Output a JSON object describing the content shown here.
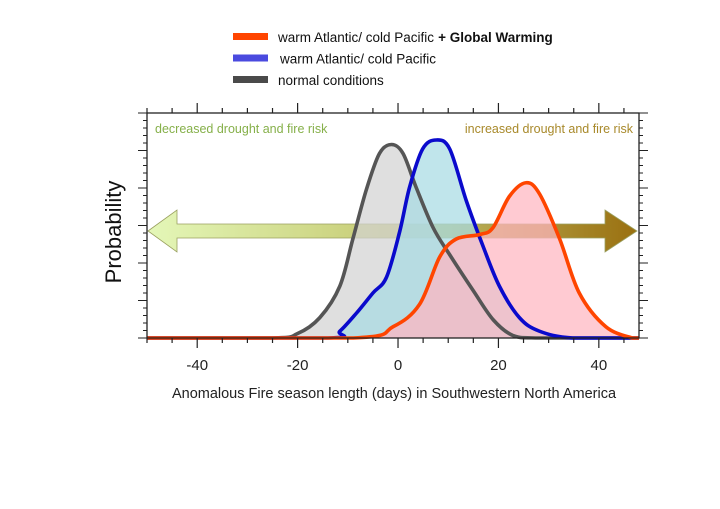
{
  "chart_data": {
    "type": "area",
    "title": "",
    "xlabel": "Anomalous Fire season length (days) in Southwestern North America",
    "ylabel": "Probability",
    "xlim": [
      -50,
      48
    ],
    "ylim": [
      0,
      1
    ],
    "x_ticks": [
      "-40",
      "-20",
      "0",
      "20",
      "40"
    ],
    "x_tick_values": [
      -40,
      -20,
      0,
      20,
      40
    ],
    "y_tick_labels_shown": false,
    "grid": false,
    "legend": {
      "placement": "top",
      "entries": [
        {
          "text": "warm Atlantic/ cold Pacific",
          "bold_suffix": "+ Global Warming",
          "color": "#ff4500"
        },
        {
          "text": "warm Atlantic/ cold Pacific",
          "bold_suffix": "",
          "color": "#4a4adf"
        },
        {
          "text": "normal conditions",
          "bold_suffix": "",
          "color": "#4a4a4a"
        }
      ]
    },
    "annotations": {
      "left": "decreased drought and fire risk",
      "right": "increased drought and fire risk",
      "left_color": "#86b04a",
      "right_color": "#a8892a"
    },
    "series": [
      {
        "key": "normal",
        "line": "#555555",
        "fill": "#d3d3d3",
        "points": [
          [
            -50,
            0
          ],
          [
            -25,
            0
          ],
          [
            -20,
            0.02
          ],
          [
            -15.6,
            0.09
          ],
          [
            -11.6,
            0.23
          ],
          [
            -9,
            0.44
          ],
          [
            -6.3,
            0.66
          ],
          [
            -3.7,
            0.82
          ],
          [
            -1.3,
            0.86
          ],
          [
            1,
            0.82
          ],
          [
            3.6,
            0.67
          ],
          [
            7,
            0.49
          ],
          [
            10.3,
            0.37
          ],
          [
            15,
            0.21
          ],
          [
            19,
            0.08
          ],
          [
            23,
            0.01
          ],
          [
            28,
            0
          ],
          [
            48,
            0
          ]
        ]
      },
      {
        "key": "warm_cold",
        "line": "#0a0acc",
        "fill": "#a8dbe3",
        "points": [
          [
            -50,
            0
          ],
          [
            -14,
            0
          ],
          [
            -11.6,
            0.03
          ],
          [
            -8.3,
            0.11
          ],
          [
            -5,
            0.2
          ],
          [
            -2.3,
            0.27
          ],
          [
            0.3,
            0.47
          ],
          [
            2.3,
            0.67
          ],
          [
            4.9,
            0.84
          ],
          [
            7.6,
            0.88
          ],
          [
            10.3,
            0.84
          ],
          [
            13.6,
            0.61
          ],
          [
            16.9,
            0.41
          ],
          [
            20.2,
            0.23
          ],
          [
            24.2,
            0.09
          ],
          [
            28.2,
            0.03
          ],
          [
            34.8,
            0
          ],
          [
            48,
            0
          ]
        ]
      },
      {
        "key": "warm_cold_gw",
        "line": "#ff4500",
        "fill": "#ffb6c1",
        "points": [
          [
            -50,
            0
          ],
          [
            -8.9,
            0
          ],
          [
            -1,
            0.05
          ],
          [
            4.3,
            0.15
          ],
          [
            8.3,
            0.36
          ],
          [
            11.6,
            0.44
          ],
          [
            16.3,
            0.46
          ],
          [
            18.9,
            0.49
          ],
          [
            22.2,
            0.63
          ],
          [
            25.5,
            0.69
          ],
          [
            28.2,
            0.64
          ],
          [
            32.2,
            0.44
          ],
          [
            36.1,
            0.2
          ],
          [
            41.4,
            0.05
          ],
          [
            46.7,
            0
          ],
          [
            48,
            0
          ]
        ]
      }
    ]
  }
}
